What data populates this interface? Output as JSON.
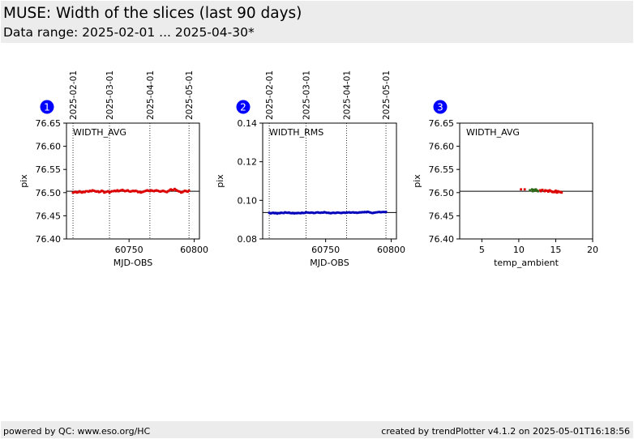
{
  "header": {
    "title": "MUSE: Width of the slices (last 90 days)",
    "subtitle": "Data range: 2025-02-01 ... 2025-04-30*"
  },
  "footer": {
    "left": "powered by QC: www.eso.org/HC",
    "right": "created by trendPlotter v4.1.2 on 2025-05-01T16:18:56"
  },
  "colors": {
    "badge": "#0000ff",
    "series_red": "#dd0000",
    "series_blue": "#0000bb",
    "series_green": "#2d6a1a"
  },
  "chart_data": [
    {
      "panel_number": "1",
      "type": "scatter",
      "inner_label": "WIDTH_AVG",
      "xlabel": "MJD-OBS",
      "ylabel": "pix",
      "xlim": [
        60702,
        60804
      ],
      "ylim": [
        76.4,
        76.65
      ],
      "xticks": [
        60750,
        60800
      ],
      "yticks": [
        76.4,
        76.45,
        76.5,
        76.55,
        76.6,
        76.65
      ],
      "date_markers": [
        {
          "label": "2025-02-01",
          "x": 60707
        },
        {
          "label": "2025-03-01",
          "x": 60735
        },
        {
          "label": "2025-04-01",
          "x": 60766
        },
        {
          "label": "2025-05-01",
          "x": 60796
        }
      ],
      "reference_line": 76.503,
      "series": [
        {
          "color": "#dd0000",
          "x": [
            60707,
            60708,
            60709,
            60710,
            60711,
            60712,
            60713,
            60714,
            60715,
            60716,
            60717,
            60718,
            60719,
            60720,
            60721,
            60722,
            60723,
            60724,
            60725,
            60726,
            60727,
            60728,
            60729,
            60730,
            60731,
            60732,
            60733,
            60734,
            60735,
            60736,
            60737,
            60738,
            60739,
            60740,
            60741,
            60742,
            60743,
            60744,
            60745,
            60746,
            60747,
            60748,
            60749,
            60750,
            60751,
            60752,
            60753,
            60754,
            60755,
            60756,
            60757,
            60758,
            60759,
            60760,
            60761,
            60762,
            60763,
            60764,
            60765,
            60766,
            60767,
            60768,
            60769,
            60770,
            60771,
            60772,
            60773,
            60774,
            60775,
            60776,
            60777,
            60778,
            60779,
            60780,
            60781,
            60782,
            60783,
            60784,
            60785,
            60786,
            60787,
            60788,
            60789,
            60790,
            60791,
            60792,
            60793,
            60794,
            60795,
            60796
          ],
          "y": [
            76.5,
            76.501,
            76.502,
            76.5,
            76.501,
            76.503,
            76.501,
            76.5,
            76.502,
            76.501,
            76.503,
            76.503,
            76.502,
            76.504,
            76.503,
            76.505,
            76.504,
            76.503,
            76.502,
            76.503,
            76.501,
            76.502,
            76.504,
            76.503,
            76.5,
            76.501,
            76.502,
            76.503,
            76.5,
            76.502,
            76.503,
            76.503,
            76.504,
            76.503,
            76.505,
            76.503,
            76.504,
            76.505,
            76.506,
            76.504,
            76.503,
            76.504,
            76.505,
            76.503,
            76.502,
            76.503,
            76.504,
            76.503,
            76.504,
            76.503,
            76.501,
            76.502,
            76.5,
            76.501,
            76.502,
            76.503,
            76.504,
            76.505,
            76.504,
            76.503,
            76.505,
            76.504,
            76.503,
            76.504,
            76.505,
            76.504,
            76.503,
            76.502,
            76.503,
            76.504,
            76.503,
            76.502,
            76.501,
            76.503,
            76.505,
            76.507,
            76.506,
            76.505,
            76.508,
            76.506,
            76.504,
            76.503,
            76.502,
            76.5,
            76.501,
            76.503,
            76.504,
            76.503,
            76.502,
            76.504
          ]
        }
      ]
    },
    {
      "panel_number": "2",
      "type": "scatter",
      "inner_label": "WIDTH_RMS",
      "xlabel": "MJD-OBS",
      "ylabel": "pix",
      "xlim": [
        60702,
        60804
      ],
      "ylim": [
        0.08,
        0.14
      ],
      "xticks": [
        60750,
        60800
      ],
      "yticks": [
        0.08,
        0.1,
        0.12,
        0.14
      ],
      "date_markers": [
        {
          "label": "2025-02-01",
          "x": 60707
        },
        {
          "label": "2025-03-01",
          "x": 60735
        },
        {
          "label": "2025-04-01",
          "x": 60766
        },
        {
          "label": "2025-05-01",
          "x": 60796
        }
      ],
      "reference_line": 0.0937,
      "series": [
        {
          "color": "#0000bb",
          "x": [
            60707,
            60708,
            60709,
            60710,
            60711,
            60712,
            60713,
            60714,
            60715,
            60716,
            60717,
            60718,
            60719,
            60720,
            60721,
            60722,
            60723,
            60724,
            60725,
            60726,
            60727,
            60728,
            60729,
            60730,
            60731,
            60732,
            60733,
            60734,
            60735,
            60736,
            60737,
            60738,
            60739,
            60740,
            60741,
            60742,
            60743,
            60744,
            60745,
            60746,
            60747,
            60748,
            60749,
            60750,
            60751,
            60752,
            60753,
            60754,
            60755,
            60756,
            60757,
            60758,
            60759,
            60760,
            60761,
            60762,
            60763,
            60764,
            60765,
            60766,
            60767,
            60768,
            60769,
            60770,
            60771,
            60772,
            60773,
            60774,
            60775,
            60776,
            60777,
            60778,
            60779,
            60780,
            60781,
            60782,
            60783,
            60784,
            60785,
            60786,
            60787,
            60788,
            60789,
            60790,
            60791,
            60792,
            60793,
            60794,
            60795,
            60796
          ],
          "y": [
            0.0935,
            0.0932,
            0.0934,
            0.0936,
            0.0933,
            0.0935,
            0.0931,
            0.0934,
            0.0933,
            0.0936,
            0.0935,
            0.0934,
            0.0938,
            0.0936,
            0.0935,
            0.0937,
            0.0934,
            0.0933,
            0.0935,
            0.0932,
            0.0934,
            0.0933,
            0.0935,
            0.0934,
            0.0933,
            0.0936,
            0.0934,
            0.0935,
            0.0938,
            0.0937,
            0.0936,
            0.0935,
            0.0937,
            0.0936,
            0.0934,
            0.0935,
            0.0937,
            0.0938,
            0.0936,
            0.0935,
            0.0937,
            0.0936,
            0.0939,
            0.0937,
            0.0935,
            0.0936,
            0.0934,
            0.0933,
            0.0935,
            0.0936,
            0.0934,
            0.0935,
            0.0937,
            0.0936,
            0.0935,
            0.0934,
            0.0936,
            0.0937,
            0.0935,
            0.0936,
            0.0937,
            0.0938,
            0.0936,
            0.0937,
            0.0938,
            0.0936,
            0.0937,
            0.0935,
            0.0936,
            0.0938,
            0.0937,
            0.0939,
            0.0938,
            0.094,
            0.0938,
            0.0941,
            0.0939,
            0.0937,
            0.0935,
            0.0934,
            0.0936,
            0.0937,
            0.0938,
            0.0939,
            0.094,
            0.0938,
            0.0939,
            0.094,
            0.0939,
            0.094
          ]
        }
      ]
    },
    {
      "panel_number": "3",
      "type": "scatter",
      "inner_label": "WIDTH_AVG",
      "xlabel": "temp_ambient",
      "ylabel": "pix",
      "xlim": [
        2,
        20
      ],
      "ylim": [
        76.4,
        76.65
      ],
      "xticks": [
        5,
        10,
        15,
        20
      ],
      "yticks": [
        76.4,
        76.45,
        76.5,
        76.55,
        76.6,
        76.65
      ],
      "reference_line": 76.503,
      "series": [
        {
          "color": "#dd0000",
          "x": [
            10.3,
            10.8,
            12.5,
            12.9,
            13.2,
            13.5,
            13.8,
            14.0,
            14.2,
            14.4,
            14.6,
            14.8,
            15.0,
            15.2,
            15.4,
            15.6,
            15.8,
            13.0,
            14.1,
            14.9,
            15.3,
            13.6,
            14.5,
            15.7
          ],
          "y": [
            76.507,
            76.507,
            76.504,
            76.505,
            76.506,
            76.503,
            76.504,
            76.502,
            76.505,
            76.503,
            76.501,
            76.502,
            76.504,
            76.5,
            76.502,
            76.501,
            76.5,
            76.503,
            76.504,
            76.501,
            76.503,
            76.505,
            76.502,
            76.501
          ]
        },
        {
          "color": "#2d6a1a",
          "x": [
            11.5,
            11.8,
            12.0,
            12.2,
            12.4,
            12.6,
            11.9,
            12.3
          ],
          "y": [
            76.505,
            76.507,
            76.506,
            76.504,
            76.505,
            76.503,
            76.503,
            76.507
          ]
        }
      ]
    }
  ]
}
